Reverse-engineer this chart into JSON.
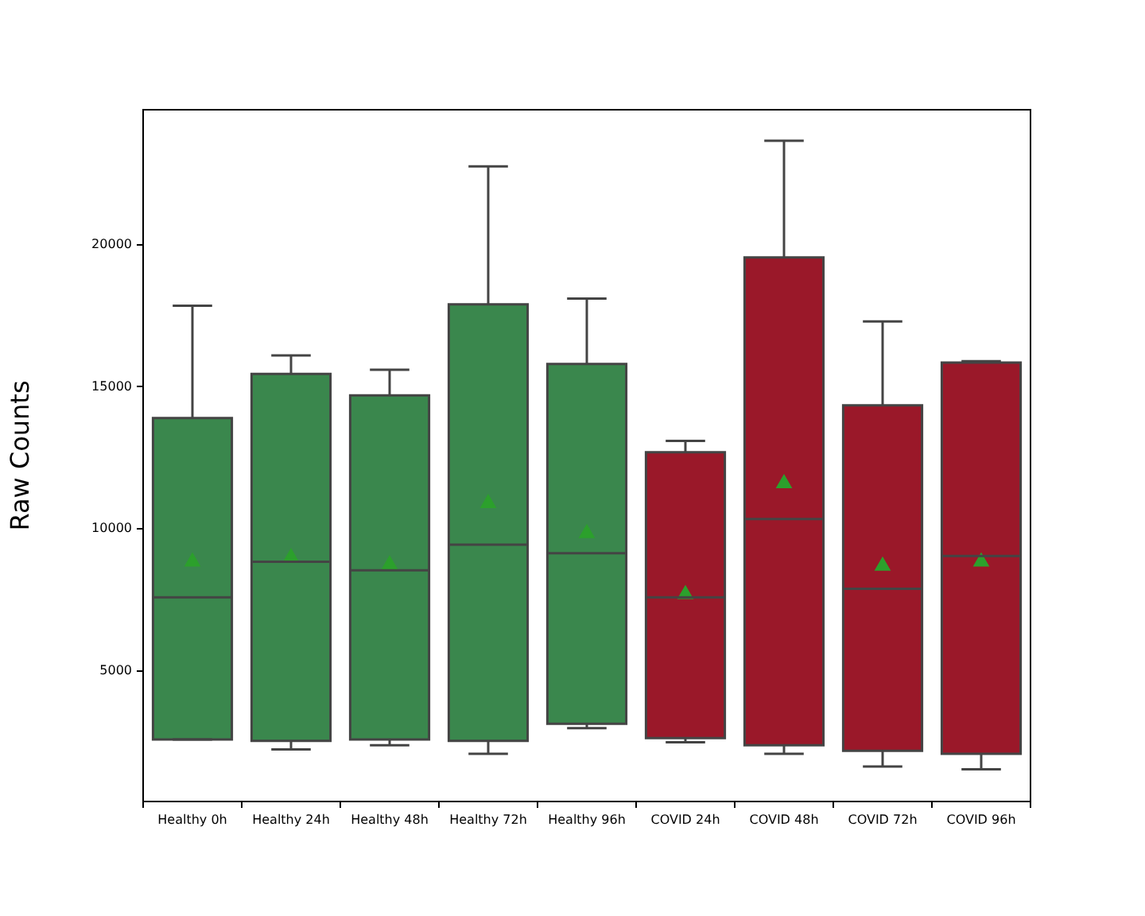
{
  "chart_data": {
    "type": "box",
    "ylabel": "Raw Counts",
    "categories": [
      "Healthy 0h",
      "Healthy 24h",
      "Healthy 48h",
      "Healthy 72h",
      "Healthy 96h",
      "COVID 24h",
      "COVID 48h",
      "COVID 72h",
      "COVID 96h"
    ],
    "colors": [
      "#3a874d",
      "#3a874d",
      "#3a874d",
      "#3a874d",
      "#3a874d",
      "#9a1829",
      "#9a1829",
      "#9a1829",
      "#9a1829"
    ],
    "boxes": [
      {
        "low": 2600,
        "q1": 2600,
        "median": 7600,
        "q3": 13900,
        "high": 17850,
        "mean": 8850
      },
      {
        "low": 2250,
        "q1": 2550,
        "median": 8850,
        "q3": 15450,
        "high": 16100,
        "mean": 9000
      },
      {
        "low": 2400,
        "q1": 2600,
        "median": 8550,
        "q3": 14700,
        "high": 15600,
        "mean": 8750
      },
      {
        "low": 2100,
        "q1": 2550,
        "median": 9450,
        "q3": 17900,
        "high": 22750,
        "mean": 10900
      },
      {
        "low": 3000,
        "q1": 3150,
        "median": 9150,
        "q3": 15800,
        "high": 18100,
        "mean": 9850
      },
      {
        "low": 2500,
        "q1": 2650,
        "median": 7600,
        "q3": 12700,
        "high": 13100,
        "mean": 7700
      },
      {
        "low": 2100,
        "q1": 2400,
        "median": 10350,
        "q3": 19550,
        "high": 23650,
        "mean": 11600
      },
      {
        "low": 1650,
        "q1": 2200,
        "median": 7900,
        "q3": 14350,
        "high": 17300,
        "mean": 8700
      },
      {
        "low": 1550,
        "q1": 2100,
        "median": 9050,
        "q3": 15850,
        "high": 15900,
        "mean": 8850
      }
    ],
    "ylim": [
      420,
      24740
    ],
    "yticks": [
      5000,
      10000,
      15000,
      20000
    ],
    "grid": false,
    "legend": false
  }
}
